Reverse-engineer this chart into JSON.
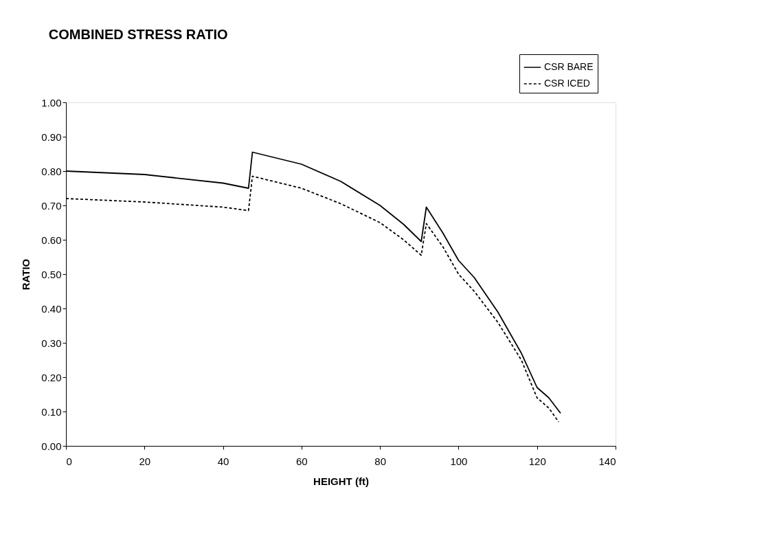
{
  "chart_data": {
    "type": "line",
    "title": "COMBINED STRESS RATIO",
    "xlabel": "HEIGHT (ft)",
    "ylabel": "RATIO",
    "x": [
      0,
      20,
      40,
      46.5,
      47.5,
      60,
      70,
      80,
      86,
      90.5,
      91.8,
      96,
      100,
      104,
      110,
      116,
      120,
      123,
      126
    ],
    "series": [
      {
        "name": "CSR BARE",
        "color": "#000000",
        "line_style": "solid",
        "values": [
          0.8,
          0.79,
          0.765,
          0.75,
          0.855,
          0.82,
          0.77,
          0.7,
          0.645,
          0.595,
          0.695,
          0.62,
          0.54,
          0.49,
          0.39,
          0.27,
          0.17,
          0.14,
          0.095
        ]
      },
      {
        "name": "CSR ICED",
        "color": "#000000",
        "line_style": "dashed",
        "x": [
          0,
          20,
          40,
          46.5,
          47.5,
          60,
          70,
          80,
          86,
          90.5,
          91.8,
          96,
          100,
          104,
          110,
          116,
          120,
          123,
          125.5
        ],
        "values": [
          0.72,
          0.71,
          0.695,
          0.685,
          0.785,
          0.75,
          0.705,
          0.65,
          0.6,
          0.555,
          0.647,
          0.58,
          0.5,
          0.45,
          0.36,
          0.25,
          0.14,
          0.11,
          0.07
        ]
      }
    ],
    "xlim": [
      0,
      140
    ],
    "xticks": [
      0,
      20,
      40,
      60,
      80,
      100,
      120,
      140
    ],
    "ylim": [
      0,
      1
    ],
    "yticks": [
      {
        "value": 0,
        "label": "0.00"
      },
      {
        "value": 0.1,
        "label": "0.10"
      },
      {
        "value": 0.2,
        "label": "0.20"
      },
      {
        "value": 0.3,
        "label": "0.30"
      },
      {
        "value": 0.4,
        "label": "0.40"
      },
      {
        "value": 0.5,
        "label": "0.50"
      },
      {
        "value": 0.6,
        "label": "0.60"
      },
      {
        "value": 0.7,
        "label": "0.70"
      },
      {
        "value": 0.8,
        "label": "0.80"
      },
      {
        "value": 0.9,
        "label": "0.90"
      },
      {
        "value": 1,
        "label": "1.00"
      }
    ],
    "grid": false,
    "legend": "top right",
    "marker": "none"
  }
}
